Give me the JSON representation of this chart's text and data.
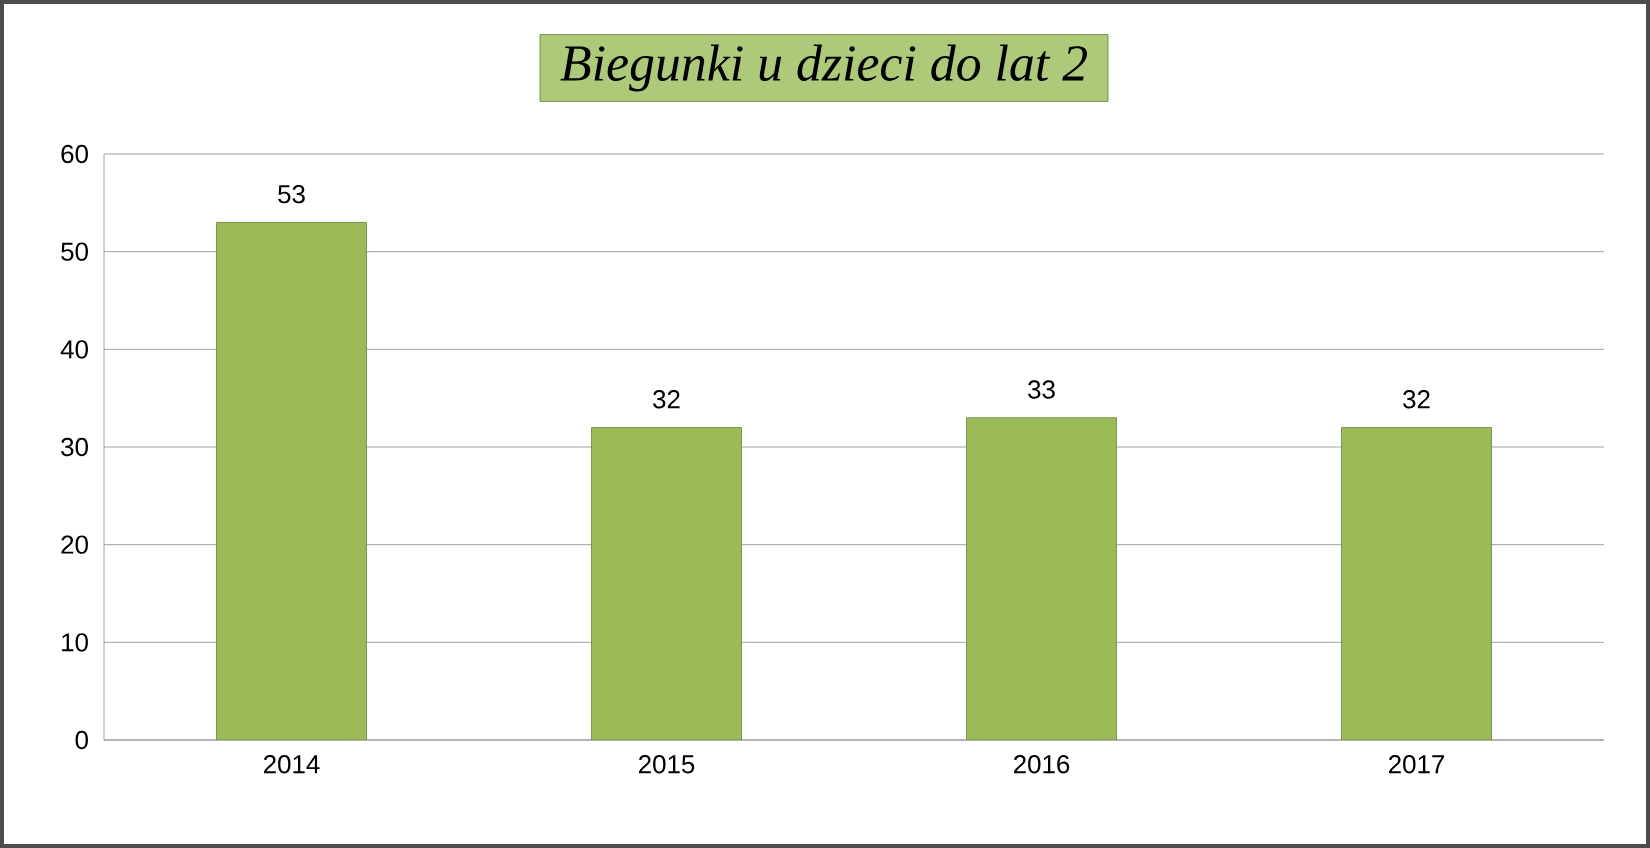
{
  "chart_data": {
    "type": "bar",
    "title": "Biegunki u dzieci do lat 2",
    "categories": [
      "2014",
      "2015",
      "2016",
      "2017"
    ],
    "values": [
      53,
      32,
      33,
      32
    ],
    "color": "#9bbb59",
    "ylim": [
      0,
      60
    ],
    "yticks": [
      0,
      10,
      20,
      30,
      40,
      50,
      60
    ],
    "grid": "y",
    "data_labels": true
  }
}
